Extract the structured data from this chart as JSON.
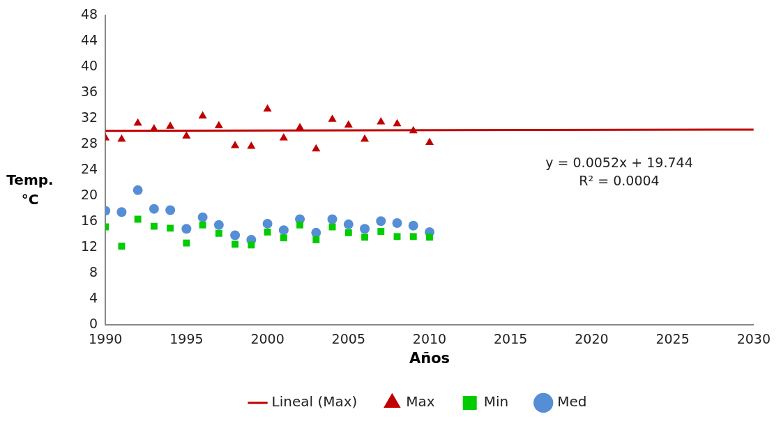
{
  "chart_data": {
    "type": "scatter",
    "xlabel": "Años",
    "ylabel": "Temp. °C",
    "xlim": [
      1990,
      2030
    ],
    "xticks": [
      1990,
      1995,
      2000,
      2005,
      2010,
      2015,
      2020,
      2025,
      2030
    ],
    "ylim": [
      0,
      48
    ],
    "yticks": [
      0,
      4,
      8,
      12,
      16,
      20,
      24,
      28,
      32,
      36,
      40,
      44,
      48
    ],
    "grid": false,
    "legend": "bottom",
    "x": [
      1990,
      1991,
      1992,
      1993,
      1994,
      1995,
      1996,
      1997,
      1998,
      1999,
      2000,
      2001,
      2002,
      2003,
      2004,
      2005,
      2006,
      2007,
      2008,
      2009,
      2010
    ],
    "series": [
      {
        "name": "Med",
        "color": "#558ed5",
        "marker": "circle",
        "values": [
          17.7,
          17.5,
          20.9,
          18.0,
          17.8,
          14.9,
          16.7,
          15.5,
          13.9,
          13.2,
          15.7,
          14.7,
          16.4,
          14.3,
          16.4,
          15.6,
          14.9,
          16.1,
          15.8,
          15.4,
          14.4
        ]
      },
      {
        "name": "Min",
        "color": "#00cc00",
        "marker": "square",
        "values": [
          15.2,
          12.2,
          16.4,
          15.3,
          15.0,
          12.7,
          15.5,
          14.2,
          12.5,
          12.4,
          14.4,
          13.5,
          15.5,
          13.2,
          15.2,
          14.3,
          13.6,
          14.5,
          13.7,
          13.7,
          13.6
        ]
      },
      {
        "name": "Max",
        "color": "#c00000",
        "marker": "triangle",
        "values": [
          29.0,
          28.8,
          31.3,
          30.4,
          30.8,
          29.3,
          32.4,
          30.9,
          27.8,
          27.7,
          33.5,
          29.0,
          30.6,
          27.3,
          31.9,
          31.0,
          28.8,
          31.5,
          31.2,
          30.1,
          28.3
        ]
      },
      {
        "name": "Lineal (Max)",
        "type": "line",
        "color": "#c00000",
        "marker": "none",
        "x": [
          1990,
          2030
        ],
        "values": [
          30.1,
          30.3
        ]
      }
    ],
    "annotations": [
      "y = 0.0052x + 19.744",
      "R² = 0.0004"
    ]
  }
}
